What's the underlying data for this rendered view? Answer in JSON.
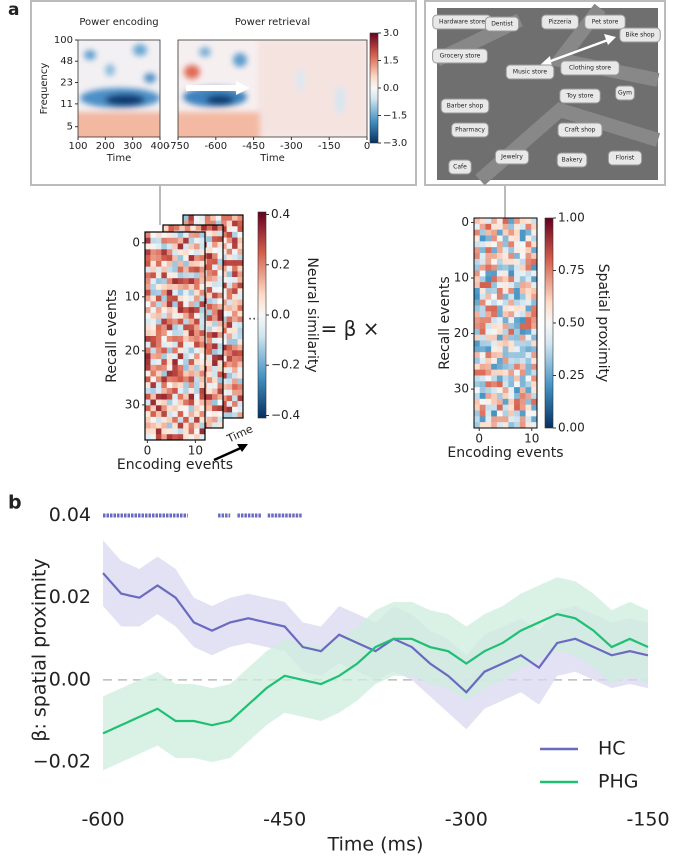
{
  "panel_labels": [
    "a",
    "b"
  ],
  "equation": "= β ×",
  "map": {
    "labels": [
      "Hardware store",
      "Dentist",
      "Pizzeria",
      "Pet store",
      "Bike shop",
      "Grocery store",
      "Music store",
      "Clothing store",
      "Toy store",
      "Gym",
      "Barber shop",
      "Pharmacy",
      "Craft shop",
      "Jewelry",
      "Bakery",
      "Florist",
      "Cafe"
    ]
  },
  "chart_data": [
    {
      "type": "heatmap",
      "title": "Power encoding",
      "xlabel": "Time",
      "ylabel": "Frequency",
      "xlim": [
        100,
        400
      ],
      "xticks": [
        100,
        200,
        300,
        400
      ],
      "ylim": [
        3.5,
        100
      ],
      "yticks": [
        100,
        48,
        23,
        11,
        5
      ],
      "log_y": true
    },
    {
      "type": "heatmap",
      "title": "Power retrieval",
      "xlabel": "Time",
      "xlim": [
        -750,
        0
      ],
      "xticks": [
        -750,
        -600,
        -450,
        -300,
        -150,
        0
      ],
      "colorbar": {
        "lim": [
          -3,
          3
        ],
        "ticks": [
          {
            "value": 3,
            "label": "3.0"
          },
          {
            "value": 1.5,
            "label": "1.5"
          },
          {
            "value": 0,
            "label": "0.0"
          },
          {
            "value": -1.5,
            "label": "−1.5"
          },
          {
            "value": -3,
            "label": "−3.0"
          }
        ]
      }
    },
    {
      "type": "heatmap",
      "xlabel": "Encoding events",
      "ylabel": "Recall events",
      "xlim": [
        -0.5,
        12
      ],
      "xticks": [
        0,
        10
      ],
      "ylim": [
        -2,
        36.5
      ],
      "yticks": [
        0,
        10,
        20,
        30
      ],
      "annotations": [
        "Time",
        "..."
      ],
      "colorbar": {
        "label": "Neural similarity",
        "lim": [
          -0.41,
          0.41
        ],
        "ticks": [
          0.4,
          0.2,
          {
            "value": 0,
            "label": "0.0"
          },
          {
            "value": -0.2,
            "label": "−0.2"
          },
          {
            "value": -0.4,
            "label": "−0.4"
          }
        ]
      }
    },
    {
      "type": "heatmap",
      "xlabel": "Encoding events",
      "ylabel": "Recall events",
      "xlim": [
        -1,
        11
      ],
      "xticks": [
        0,
        10
      ],
      "ylim": [
        -0.8,
        37
      ],
      "yticks": [
        0,
        10,
        20,
        30
      ],
      "colorbar": {
        "label": "Spatial proximity",
        "lim": [
          0,
          1
        ],
        "ticks": [
          {
            "value": 1,
            "label": "1.00"
          },
          {
            "value": 0.75,
            "label": "0.75"
          },
          {
            "value": 0.5,
            "label": "0.50"
          },
          {
            "value": 0.25,
            "label": "0.25"
          },
          {
            "value": 0,
            "label": "0.00"
          }
        ]
      }
    },
    {
      "type": "line",
      "xlabel": "Time (ms)",
      "ylabel": "β: spatial proximity",
      "xlim": [
        -600,
        -150
      ],
      "xticks": [
        -600,
        -450,
        -300,
        -150
      ],
      "ylim": [
        -0.028,
        0.045
      ],
      "yticks": [
        0.04,
        0.02,
        {
          "value": 0,
          "label": "0.00"
        },
        {
          "value": -0.02,
          "label": "−0.02"
        }
      ],
      "zero_line": true,
      "legend": "lower right",
      "x": [
        -600,
        -585,
        -570,
        -555,
        -540,
        -525,
        -510,
        -495,
        -480,
        -465,
        -450,
        -435,
        -420,
        -405,
        -390,
        -375,
        -360,
        -345,
        -330,
        -315,
        -300,
        -285,
        -270,
        -255,
        -240,
        -225,
        -210,
        -195,
        -180,
        -165,
        -150
      ],
      "series": [
        {
          "name": "HC",
          "color": "#6a6ac0",
          "band_color": "#d8d8f0",
          "values": [
            0.026,
            0.021,
            0.02,
            0.023,
            0.02,
            0.014,
            0.012,
            0.014,
            0.015,
            0.014,
            0.013,
            0.008,
            0.007,
            0.011,
            0.009,
            0.007,
            0.01,
            0.008,
            0.004,
            0.001,
            -0.003,
            0.002,
            0.004,
            0.006,
            0.003,
            0.009,
            0.01,
            0.008,
            0.006,
            0.007,
            0.006
          ],
          "error": [
            0.008,
            0.008,
            0.007,
            0.007,
            0.007,
            0.006,
            0.006,
            0.006,
            0.006,
            0.006,
            0.006,
            0.006,
            0.006,
            0.007,
            0.007,
            0.007,
            0.008,
            0.008,
            0.008,
            0.009,
            0.009,
            0.009,
            0.009,
            0.009,
            0.009,
            0.008,
            0.008,
            0.008,
            0.008,
            0.008,
            0.008
          ],
          "significance": {
            "y": 0.04,
            "intervals": [
              [
                -600,
                -530
              ],
              [
                -505,
                -495
              ],
              [
                -489,
                -469
              ],
              [
                -464,
                -436
              ]
            ]
          }
        },
        {
          "name": "PHG",
          "color": "#1fbf74",
          "band_color": "#cdeedd",
          "values": [
            -0.013,
            -0.011,
            -0.009,
            -0.007,
            -0.01,
            -0.01,
            -0.011,
            -0.01,
            -0.006,
            -0.002,
            0.001,
            0,
            -0.001,
            0.001,
            0.004,
            0.008,
            0.01,
            0.01,
            0.008,
            0.007,
            0.004,
            0.007,
            0.009,
            0.012,
            0.014,
            0.016,
            0.015,
            0.012,
            0.008,
            0.01,
            0.008
          ],
          "error": [
            0.009,
            0.009,
            0.009,
            0.009,
            0.009,
            0.009,
            0.009,
            0.009,
            0.009,
            0.009,
            0.009,
            0.009,
            0.009,
            0.009,
            0.009,
            0.009,
            0.009,
            0.009,
            0.009,
            0.009,
            0.009,
            0.009,
            0.009,
            0.009,
            0.009,
            0.009,
            0.009,
            0.009,
            0.009,
            0.009,
            0.009
          ]
        }
      ]
    }
  ]
}
